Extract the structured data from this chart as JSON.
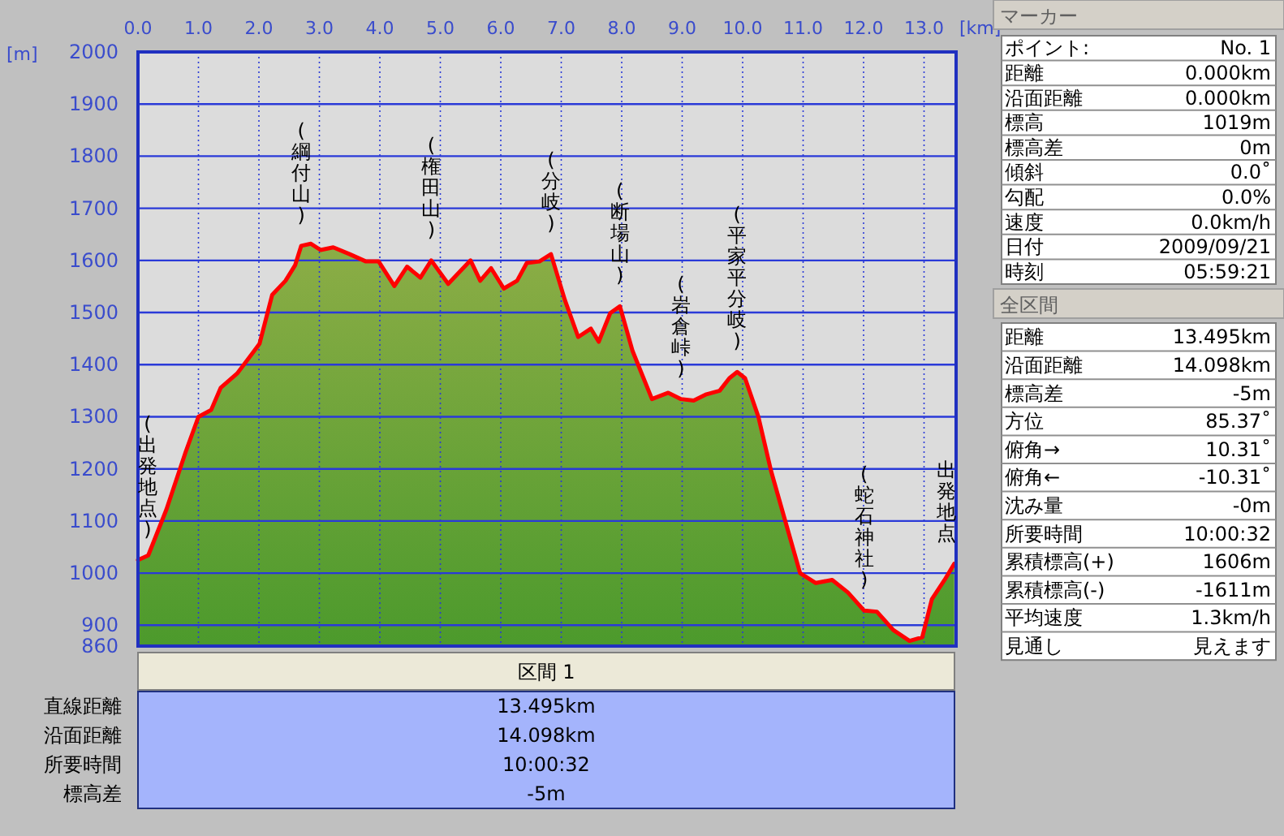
{
  "chart_data": {
    "type": "area",
    "xlabel": "[km]",
    "ylabel": "[m]",
    "x": [
      0,
      0.17,
      0.47,
      0.79,
      1.0,
      1.21,
      1.37,
      1.64,
      1.9,
      2.01,
      2.22,
      2.44,
      2.6,
      2.7,
      2.86,
      3.02,
      3.23,
      3.5,
      3.77,
      3.98,
      4.24,
      4.45,
      4.67,
      4.85,
      5.13,
      5.5,
      5.66,
      5.84,
      6.05,
      6.27,
      6.43,
      6.64,
      6.83,
      7.06,
      7.28,
      7.49,
      7.62,
      7.81,
      7.97,
      8.18,
      8.5,
      8.77,
      8.98,
      9.19,
      9.4,
      9.62,
      9.78,
      9.91,
      10.04,
      10.26,
      10.47,
      10.68,
      10.95,
      11.21,
      11.48,
      11.74,
      12.01,
      12.22,
      12.49,
      12.76,
      12.97,
      13.13,
      13.34,
      13.5
    ],
    "series": [
      {
        "color": "#ff0000",
        "values": [
          1025,
          1034,
          1122,
          1233,
          1300,
          1313,
          1356,
          1383,
          1423,
          1440,
          1534,
          1561,
          1591,
          1628,
          1632,
          1620,
          1625,
          1612,
          1598,
          1598,
          1551,
          1588,
          1567,
          1600,
          1555,
          1600,
          1561,
          1585,
          1546,
          1561,
          1595,
          1598,
          1612,
          1524,
          1453,
          1469,
          1444,
          1499,
          1512,
          1426,
          1334,
          1346,
          1334,
          1331,
          1343,
          1350,
          1374,
          1386,
          1374,
          1300,
          1196,
          1110,
          1000,
          981,
          987,
          963,
          928,
          926,
          891,
          870,
          877,
          950,
          987,
          1018
        ]
      }
    ],
    "xlim": [
      0,
      13.53
    ],
    "xticks": [
      {
        "value": 0,
        "label": "0.0"
      },
      {
        "value": 1,
        "label": "1.0"
      },
      {
        "value": 2,
        "label": "2.0"
      },
      {
        "value": 3,
        "label": "3.0"
      },
      {
        "value": 4,
        "label": "4.0"
      },
      {
        "value": 5,
        "label": "5.0"
      },
      {
        "value": 6,
        "label": "6.0"
      },
      {
        "value": 7,
        "label": "7.0"
      },
      {
        "value": 8,
        "label": "8.0"
      },
      {
        "value": 9,
        "label": "9.0"
      },
      {
        "value": 10,
        "label": "10.0"
      },
      {
        "value": 11,
        "label": "11.0"
      },
      {
        "value": 12,
        "label": "12.0"
      },
      {
        "value": 13,
        "label": "13.0"
      }
    ],
    "ylim": [
      860,
      2000
    ],
    "yticks": [
      860,
      900,
      1000,
      1100,
      1200,
      1300,
      1400,
      1500,
      1600,
      1700,
      1800,
      1900,
      2000
    ],
    "grid": true,
    "line_style": "solid",
    "annotations": [
      {
        "text": "(出発地点)",
        "x": 0,
        "y": 1025
      },
      {
        "text": "(綱付山)",
        "x": 2.7,
        "y": 1628
      },
      {
        "text": "(権田山)",
        "x": 4.85,
        "y": 1600
      },
      {
        "text": "(分岐)",
        "x": 6.83,
        "y": 1612
      },
      {
        "text": "(断場山)",
        "x": 7.97,
        "y": 1512
      },
      {
        "text": "(岩倉峠)",
        "x": 8.98,
        "y": 1334
      },
      {
        "text": "(平家平分岐)",
        "x": 9.91,
        "y": 1386
      },
      {
        "text": "(蛇石神社)",
        "x": 12.01,
        "y": 928
      },
      {
        "text": "出発地点",
        "x": 13.5,
        "y": 1018
      },
      "マーカー",
      "ポイント:",
      "No. 1",
      "距離",
      "0.000km",
      "沿面距離",
      "0.000km",
      "標高",
      "1019m",
      "標高差",
      "0m",
      "傾斜",
      "0.0˚",
      "勾配",
      "0.0%",
      "速度",
      "0.0km/h",
      "日付",
      "2009/09/21",
      "時刻",
      "05:59:21",
      "全区間",
      "距離",
      "13.495km",
      "沿面距離",
      "14.098km",
      "標高差",
      "-5m",
      "方位",
      "85.37˚",
      "俯角→",
      "10.31˚",
      "俯角←",
      "-10.31˚",
      "沈み量",
      "-0m",
      "所要時間",
      "10:00:32",
      "累積標高(+)",
      "1606m",
      "累積標高(-)",
      "-1611m",
      "平均速度",
      "1.3km/h",
      "見通し",
      "見えます",
      "区間 1",
      "直線距離",
      "13.495km",
      "沿面距離",
      "14.098km",
      "所要時間",
      "10:00:32",
      "標高差",
      "-5m"
    ]
  }
}
